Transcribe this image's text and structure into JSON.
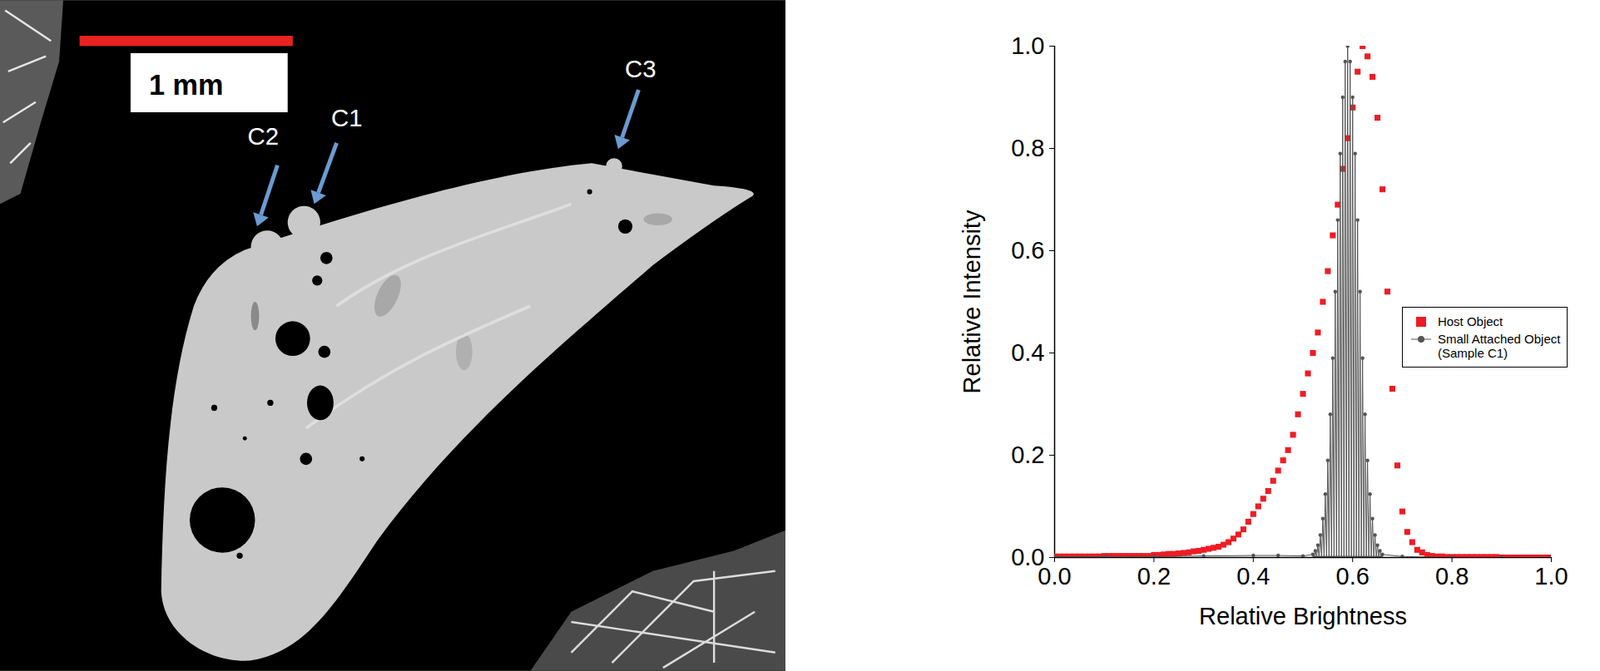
{
  "image_panel": {
    "scale_bar_label": "1 mm",
    "labels": [
      "C2",
      "C1",
      "C3"
    ]
  },
  "chart_data": {
    "type": "scatter",
    "x_label": "Relative Brightness",
    "y_label": "Relative Intensity",
    "xlim": [
      0,
      1
    ],
    "ylim": [
      0,
      1
    ],
    "xticks": [
      {
        "value": 0,
        "label": "0.0"
      },
      {
        "value": 0.2,
        "label": "0.2"
      },
      {
        "value": 0.4,
        "label": "0.4"
      },
      {
        "value": 0.6,
        "label": "0.6"
      },
      {
        "value": 0.8,
        "label": "0.8"
      },
      {
        "value": 1,
        "label": "1.0"
      }
    ],
    "yticks": [
      {
        "value": 0,
        "label": "0.0"
      },
      {
        "value": 0.2,
        "label": "0.2"
      },
      {
        "value": 0.4,
        "label": "0.4"
      },
      {
        "value": 0.6,
        "label": "0.6"
      },
      {
        "value": 0.8,
        "label": "0.8"
      },
      {
        "value": 1,
        "label": "1.0"
      }
    ],
    "grid": false,
    "legend": "right",
    "series": [
      {
        "name": "Host Object",
        "color": "#ee1c24",
        "type": "scatter",
        "marker": "square",
        "x": [
          0,
          0.01,
          0.02,
          0.03,
          0.04,
          0.05,
          0.06,
          0.07,
          0.08,
          0.09,
          0.1,
          0.11,
          0.12,
          0.13,
          0.14,
          0.15,
          0.16,
          0.17,
          0.18,
          0.19,
          0.2,
          0.21,
          0.22,
          0.23,
          0.24,
          0.25,
          0.26,
          0.27,
          0.28,
          0.29,
          0.3,
          0.31,
          0.32,
          0.33,
          0.34,
          0.35,
          0.36,
          0.37,
          0.38,
          0.39,
          0.4,
          0.41,
          0.42,
          0.43,
          0.44,
          0.45,
          0.46,
          0.47,
          0.48,
          0.49,
          0.5,
          0.51,
          0.52,
          0.53,
          0.54,
          0.55,
          0.56,
          0.57,
          0.58,
          0.59,
          0.6,
          0.61,
          0.62,
          0.63,
          0.64,
          0.65,
          0.66,
          0.67,
          0.68,
          0.69,
          0.7,
          0.71,
          0.72,
          0.73,
          0.74,
          0.75,
          0.76,
          0.77,
          0.78,
          0.79,
          0.8,
          0.81,
          0.82,
          0.83,
          0.84,
          0.85,
          0.86,
          0.87,
          0.88,
          0.89,
          0.9,
          0.91,
          0.92,
          0.93,
          0.94,
          0.95,
          0.96,
          0.97,
          0.98,
          0.99,
          1
        ],
        "values": [
          0.002,
          0.002,
          0.002,
          0.002,
          0.002,
          0.002,
          0.002,
          0.002,
          0.002,
          0.002,
          0.003,
          0.003,
          0.003,
          0.003,
          0.003,
          0.003,
          0.003,
          0.003,
          0.003,
          0.003,
          0.005,
          0.005,
          0.006,
          0.007,
          0.007,
          0.008,
          0.009,
          0.01,
          0.012,
          0.013,
          0.015,
          0.017,
          0.019,
          0.021,
          0.025,
          0.03,
          0.037,
          0.045,
          0.055,
          0.07,
          0.085,
          0.1,
          0.115,
          0.13,
          0.15,
          0.17,
          0.19,
          0.21,
          0.24,
          0.28,
          0.32,
          0.36,
          0.4,
          0.44,
          0.5,
          0.56,
          0.63,
          0.69,
          0.76,
          0.82,
          0.88,
          0.95,
          1.0,
          0.98,
          0.94,
          0.86,
          0.72,
          0.52,
          0.33,
          0.18,
          0.09,
          0.05,
          0.03,
          0.015,
          0.01,
          0.005,
          0.003,
          0.002,
          0.002,
          0.001,
          0.001,
          0.001,
          0.001,
          0.001,
          0.001,
          0.001,
          0.001,
          0.001,
          0.001,
          0.001,
          0,
          0,
          0,
          0,
          0,
          0,
          0,
          0,
          0,
          0,
          0
        ]
      },
      {
        "name": "Small Attached Object (Sample C1)",
        "color": "#555555",
        "type": "line",
        "marker": "circle",
        "line_style": "solid",
        "x": [
          0,
          0.1,
          0.2,
          0.3,
          0.4,
          0.45,
          0.5,
          0.52,
          0.5225,
          0.525,
          0.5275,
          0.53,
          0.5325,
          0.535,
          0.5375,
          0.54,
          0.5425,
          0.545,
          0.5475,
          0.55,
          0.5525,
          0.555,
          0.5575,
          0.56,
          0.5625,
          0.565,
          0.5675,
          0.57,
          0.5725,
          0.575,
          0.5775,
          0.58,
          0.5825,
          0.585,
          0.5875,
          0.59,
          0.5925,
          0.595,
          0.5975,
          0.6,
          0.6025,
          0.605,
          0.6075,
          0.61,
          0.6125,
          0.615,
          0.6175,
          0.62,
          0.6225,
          0.625,
          0.6275,
          0.63,
          0.6325,
          0.635,
          0.6375,
          0.64,
          0.6425,
          0.645,
          0.6475,
          0.65,
          0.6525,
          0.655,
          0.6575,
          0.66,
          0.7,
          0.8,
          0.9,
          1
        ],
        "values": [
          0.002,
          0.002,
          0.002,
          0.003,
          0.004,
          0.004,
          0.003,
          0.006,
          0,
          0.013,
          0,
          0.024,
          0,
          0.044,
          0,
          0.076,
          0,
          0.124,
          0,
          0.19,
          0,
          0.28,
          0,
          0.39,
          0,
          0.52,
          0,
          0.66,
          0,
          0.79,
          0,
          0.9,
          0,
          0.97,
          0,
          1.0,
          0,
          0.97,
          0,
          0.9,
          0,
          0.79,
          0,
          0.66,
          0,
          0.52,
          0,
          0.39,
          0,
          0.28,
          0,
          0.19,
          0,
          0.124,
          0,
          0.076,
          0,
          0.044,
          0,
          0.024,
          0,
          0.013,
          0,
          0.006,
          0.002,
          0,
          0,
          0
        ]
      }
    ]
  }
}
